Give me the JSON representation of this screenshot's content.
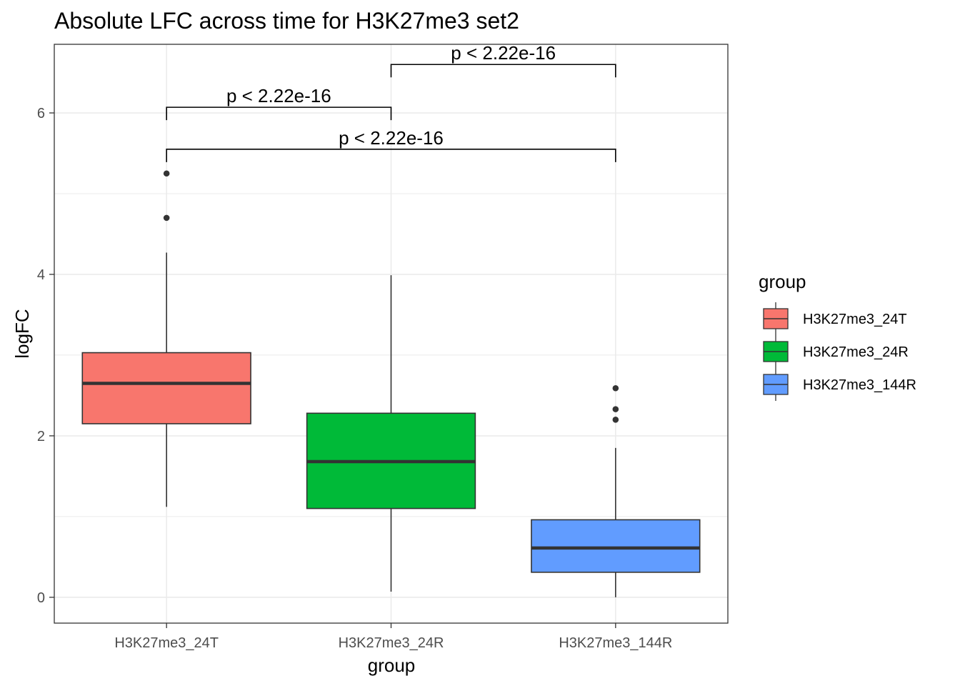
{
  "chart_data": {
    "type": "boxplot",
    "title": "Absolute LFC across time for H3K27me3 set2",
    "xlabel": "group",
    "ylabel": "logFC",
    "ylim": [
      -0.32,
      6.85
    ],
    "yticks": [
      0,
      2,
      4,
      6
    ],
    "grid": true,
    "categories": [
      "H3K27me3_24T",
      "H3K27me3_24R",
      "H3K27me3_144R"
    ],
    "series": [
      {
        "name": "H3K27me3_24T",
        "color": "#F8766D",
        "whisker_low": 1.12,
        "q1": 2.15,
        "median": 2.65,
        "q3": 3.03,
        "whisker_high": 4.27,
        "outliers": [
          4.7,
          5.25
        ]
      },
      {
        "name": "H3K27me3_24R",
        "color": "#00BA38",
        "whisker_low": 0.07,
        "q1": 1.1,
        "median": 1.68,
        "q3": 2.28,
        "whisker_high": 3.99,
        "outliers": []
      },
      {
        "name": "H3K27me3_144R",
        "color": "#619CFF",
        "whisker_low": 0.0,
        "q1": 0.31,
        "median": 0.61,
        "q3": 0.96,
        "whisker_high": 1.85,
        "outliers": [
          2.2,
          2.33,
          2.59
        ]
      }
    ],
    "comparisons": [
      {
        "from": 1,
        "to": 2,
        "y": 6.6,
        "label": "p < 2.22e-16"
      },
      {
        "from": 0,
        "to": 1,
        "y": 6.07,
        "label": "p < 2.22e-16"
      },
      {
        "from": 0,
        "to": 2,
        "y": 5.55,
        "label": "p < 2.22e-16"
      }
    ],
    "legend": {
      "title": "group",
      "position": "right",
      "entries": [
        "H3K27me3_24T",
        "H3K27me3_24R",
        "H3K27me3_144R"
      ]
    },
    "colors": {
      "outline": "#333333",
      "grid": "#ebebeb",
      "tick_text": "#4d4d4d"
    }
  }
}
